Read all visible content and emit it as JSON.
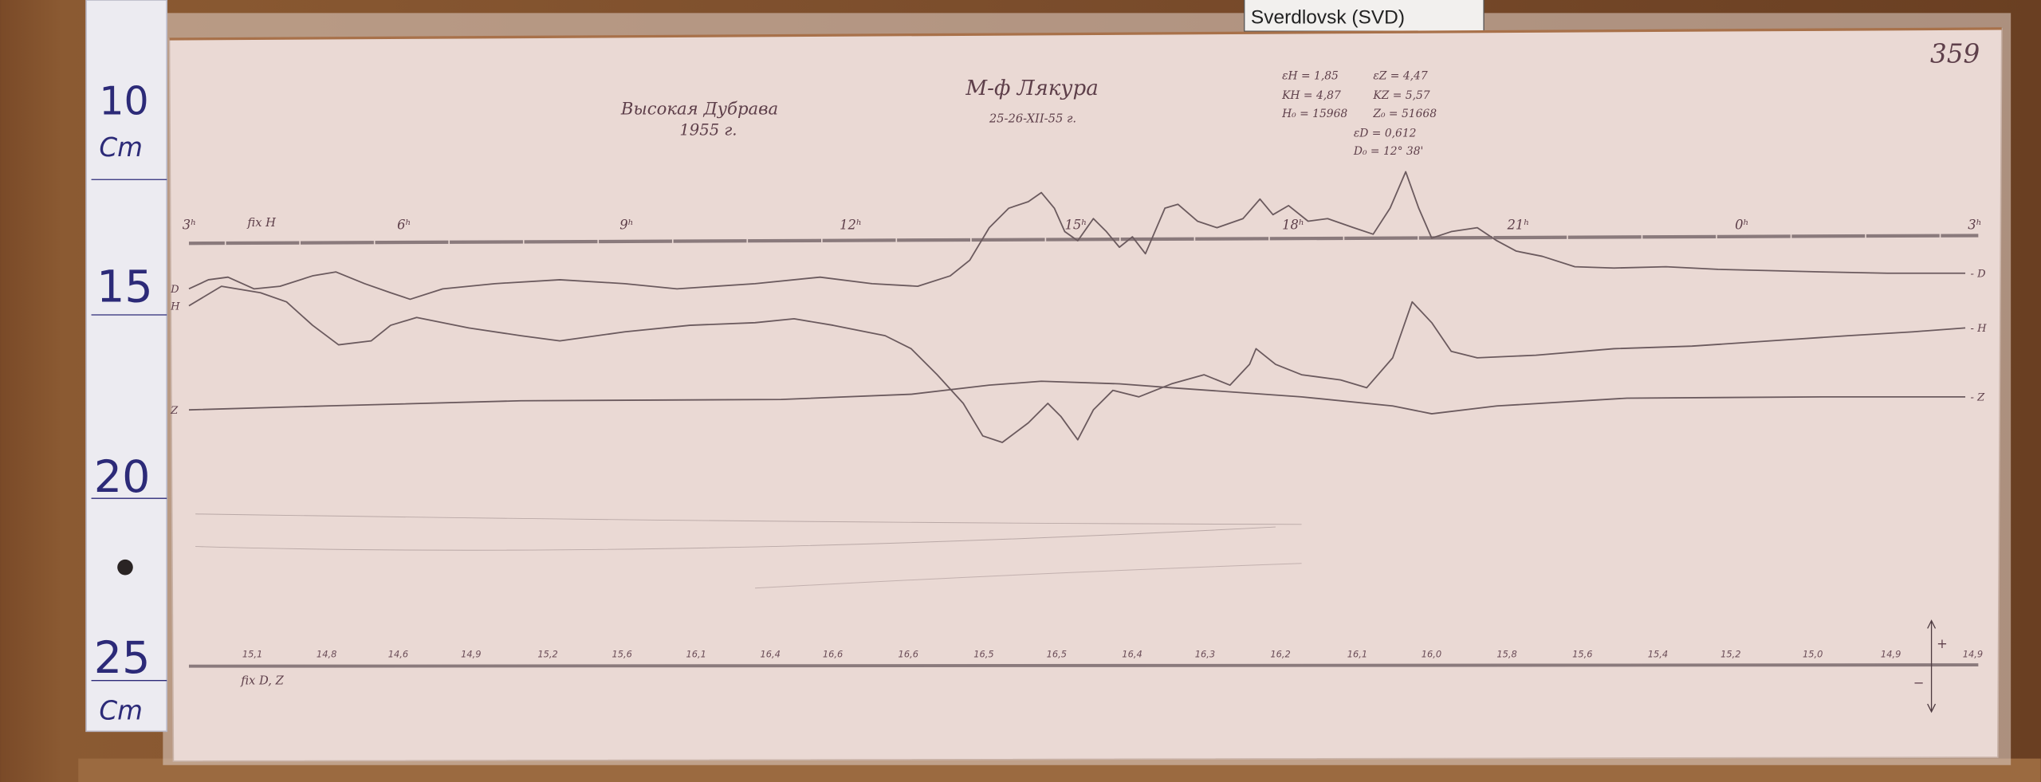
{
  "station_label": "Sverdlovsk (SVD)",
  "sheet_number": "359",
  "ruler": {
    "labels": [
      "10",
      "Cm",
      "15",
      "20",
      "25",
      "Cm"
    ]
  },
  "header": {
    "observatory": "Высокая Дубрава",
    "year": "1955 г.",
    "signature": "М-ф Лякура",
    "date": "25-26-XII-55 г."
  },
  "parameters": {
    "eps_h": "εH = 1,85",
    "eps_z": "εZ = 4,47",
    "k_h": "KH = 4,87",
    "k_z": "KZ = 5,57",
    "h0": "H₀ = 15968",
    "z0": "Z₀ = 51668",
    "eps_d": "εD = 0,612",
    "d0": "D₀ = 12° 38'"
  },
  "chart_data": {
    "type": "line",
    "title": "",
    "time_labels": [
      "3ʰ",
      "6ʰ",
      "9ʰ",
      "12ʰ",
      "15ʰ",
      "18ʰ",
      "21ʰ",
      "0ʰ",
      "3ʰ"
    ],
    "baseline_labels": [
      "15,1",
      "14,8",
      "14,6",
      "14,9",
      "15,2",
      "15,6",
      "16,1",
      "16,4",
      "16,6",
      "16,6",
      "16,5",
      "16,5",
      "16,4",
      "16,3",
      "16,2",
      "16,1",
      "16,0",
      "15,8",
      "15,6",
      "15,4",
      "15,2",
      "15,0",
      "14,9",
      "14,9"
    ],
    "series": [
      {
        "name": "D"
      },
      {
        "name": "H"
      },
      {
        "name": "Z"
      }
    ],
    "annotations": {
      "fix_h": "fix H",
      "fix_dz": "fix D, Z",
      "plus": "+",
      "minus": "−"
    },
    "grid": false,
    "ink_color": "#6b5a5e",
    "paper_color": "#ead9d4"
  }
}
